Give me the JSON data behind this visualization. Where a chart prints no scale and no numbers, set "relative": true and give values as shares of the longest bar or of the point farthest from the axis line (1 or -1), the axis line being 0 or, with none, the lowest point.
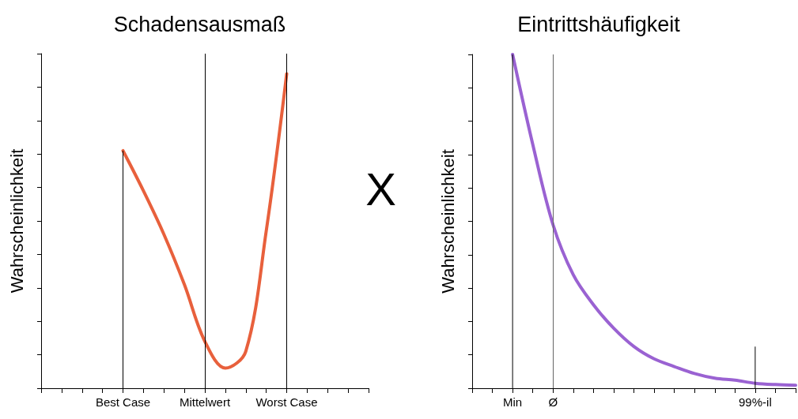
{
  "chart_data": [
    {
      "type": "line",
      "title": "Schadensausmaß",
      "ylabel": "Wahrscheinlichkeit",
      "relative": true,
      "grid": false,
      "marker": "none",
      "annotations": [
        "X"
      ],
      "categories": [
        null,
        null,
        null,
        null,
        "Best Case",
        null,
        null,
        null,
        "Mittelwert",
        null,
        null,
        null,
        "Worst Case",
        null,
        null,
        null,
        null
      ],
      "series": [
        {
          "color": "#e8603c",
          "values": [
            null,
            null,
            null,
            null,
            0.71,
            0.59,
            0.46,
            0.31,
            0.14,
            0.06,
            0.11,
            0.47,
            0.94,
            null,
            null,
            null,
            null
          ]
        },
        {
          "type": "bar",
          "color": "#000000",
          "values": [
            null,
            null,
            null,
            null,
            0.71,
            null,
            null,
            null,
            null,
            null,
            null,
            null,
            1,
            null,
            null,
            null,
            null
          ]
        }
      ],
      "ref_lines": [
        {
          "axis": "x",
          "value": "Mittelwert",
          "color": "#000000"
        }
      ]
    },
    {
      "type": "line",
      "title": "Eintrittshäufigkeit",
      "ylabel": "Wahrscheinlichkeit",
      "relative": true,
      "grid": false,
      "marker": "none",
      "categories": [
        null,
        null,
        "Min",
        null,
        "Ø",
        null,
        null,
        null,
        null,
        null,
        null,
        null,
        null,
        null,
        "99%-il",
        null,
        null
      ],
      "series": [
        {
          "color": "#9a62d2",
          "values": [
            null,
            null,
            1,
            0.73,
            0.49,
            0.34,
            0.25,
            0.18,
            0.125,
            0.088,
            0.065,
            0.044,
            0.03,
            0.024,
            0.015,
            0.011,
            0.009
          ]
        },
        {
          "type": "bar",
          "color": "#000000",
          "values": [
            null,
            null,
            1,
            null,
            null,
            null,
            null,
            null,
            null,
            null,
            null,
            null,
            null,
            null,
            0.125,
            null,
            null
          ]
        }
      ],
      "ref_lines": [
        {
          "axis": "x",
          "value": "Ø",
          "color": "#666666"
        }
      ]
    }
  ]
}
